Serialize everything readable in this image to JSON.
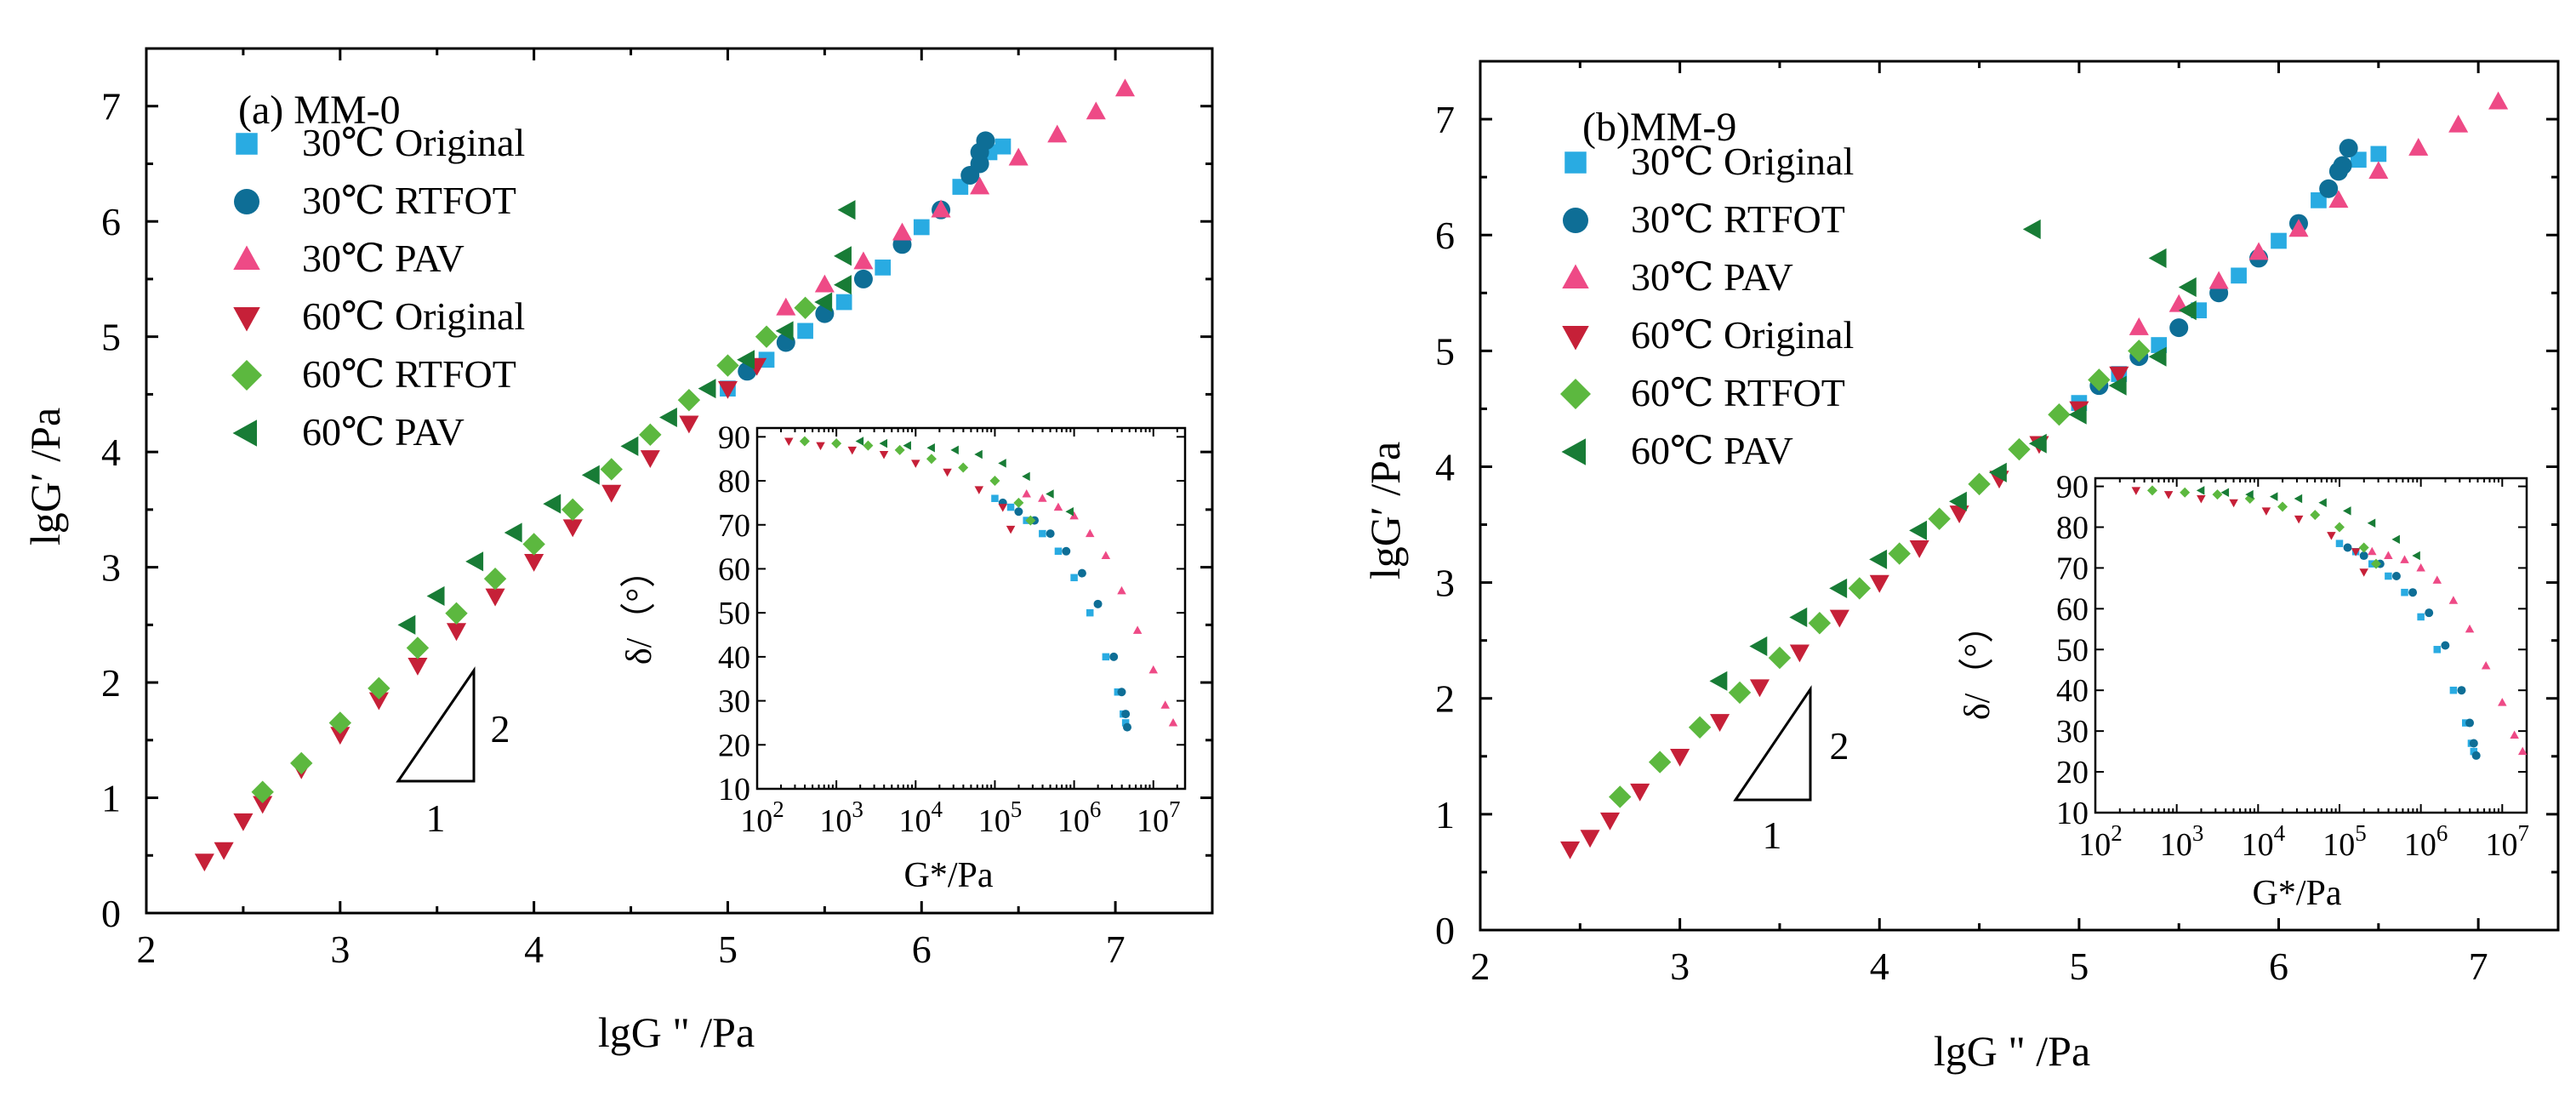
{
  "colors": {
    "c30_original": "#29abe2",
    "c30_rtfot": "#0e6e96",
    "c30_pav": "#ee4a86",
    "c60_original": "#c62038",
    "c60_rtfot": "#5cb83f",
    "c60_pav": "#187c36"
  },
  "chart_data": [
    {
      "type": "scatter",
      "panel": "a",
      "title": "(a) MM-0",
      "xlabel": "lgG \" /Pa",
      "ylabel": "lgG′ /Pa",
      "xlim": [
        2,
        7.5
      ],
      "ylim": [
        0,
        7.5
      ],
      "xticks": [
        2,
        3,
        4,
        5,
        6,
        7
      ],
      "yticks": [
        0,
        1,
        2,
        3,
        4,
        5,
        6,
        7
      ],
      "legend_position": "top-left",
      "slope_marker": {
        "run": "1",
        "rise": "2"
      },
      "series": [
        {
          "name": "30℃ Original",
          "marker": "square",
          "color_key": "c30_original",
          "x": [
            5.0,
            5.2,
            5.4,
            5.6,
            5.8,
            6.0,
            6.2,
            6.35,
            6.42
          ],
          "y": [
            4.55,
            4.8,
            5.05,
            5.3,
            5.6,
            5.95,
            6.3,
            6.6,
            6.65
          ]
        },
        {
          "name": "30℃ RTFOT",
          "marker": "circle",
          "color_key": "c30_rtfot",
          "x": [
            5.1,
            5.3,
            5.5,
            5.7,
            5.9,
            6.1,
            6.25,
            6.3,
            6.33,
            6.3
          ],
          "y": [
            4.7,
            4.95,
            5.2,
            5.5,
            5.8,
            6.1,
            6.4,
            6.6,
            6.7,
            6.5
          ]
        },
        {
          "name": "30℃ PAV",
          "marker": "triangle-up",
          "color_key": "c30_pav",
          "x": [
            5.3,
            5.5,
            5.7,
            5.9,
            6.1,
            6.3,
            6.5,
            6.7,
            6.9,
            7.05
          ],
          "y": [
            5.25,
            5.45,
            5.65,
            5.9,
            6.1,
            6.3,
            6.55,
            6.75,
            6.95,
            7.15
          ]
        },
        {
          "name": "60℃ Original",
          "marker": "triangle-down",
          "color_key": "c60_original",
          "x": [
            2.3,
            2.4,
            2.5,
            2.6,
            2.8,
            3.0,
            3.2,
            3.4,
            3.6,
            3.8,
            4.0,
            4.2,
            4.4,
            4.6,
            4.8,
            5.0,
            5.15
          ],
          "y": [
            0.45,
            0.55,
            0.8,
            0.95,
            1.25,
            1.55,
            1.85,
            2.15,
            2.45,
            2.75,
            3.05,
            3.35,
            3.65,
            3.95,
            4.25,
            4.55,
            4.75
          ]
        },
        {
          "name": "60℃ RTFOT",
          "marker": "diamond",
          "color_key": "c60_rtfot",
          "x": [
            2.6,
            2.8,
            3.0,
            3.2,
            3.4,
            3.6,
            3.8,
            4.0,
            4.2,
            4.4,
            4.6,
            4.8,
            5.0,
            5.2,
            5.4
          ],
          "y": [
            1.05,
            1.3,
            1.65,
            1.95,
            2.3,
            2.6,
            2.9,
            3.2,
            3.5,
            3.85,
            4.15,
            4.45,
            4.75,
            5.0,
            5.25
          ]
        },
        {
          "name": "60℃ PAV",
          "marker": "triangle-left",
          "color_key": "c60_pav",
          "x": [
            3.35,
            3.5,
            3.7,
            3.9,
            4.1,
            4.3,
            4.5,
            4.7,
            4.9,
            5.1,
            5.3,
            5.5,
            5.6,
            5.6,
            5.62
          ],
          "y": [
            2.5,
            2.75,
            3.05,
            3.3,
            3.55,
            3.8,
            4.05,
            4.3,
            4.55,
            4.8,
            5.05,
            5.3,
            5.45,
            5.7,
            6.1
          ]
        }
      ],
      "inset": {
        "type": "scatter",
        "xlabel": "G*/Pa",
        "ylabel": "δ/（°）",
        "xscale": "log",
        "xlim_log10": [
          2,
          7.4
        ],
        "ylim": [
          10,
          92
        ],
        "xtick_labels": [
          "10",
          "10",
          "10",
          "10",
          "10",
          "10"
        ],
        "xtick_exponents": [
          "2",
          "3",
          "4",
          "5",
          "6",
          "7"
        ],
        "ytick_labels": [
          "10",
          "20",
          "30",
          "40",
          "50",
          "60",
          "70",
          "80",
          "90"
        ],
        "series": [
          {
            "name": "30℃ Original",
            "marker": "square",
            "color_key": "c30_original",
            "log10_x": [
              5.0,
              5.2,
              5.4,
              5.6,
              5.8,
              6.0,
              6.2,
              6.4,
              6.55,
              6.62,
              6.65
            ],
            "y": [
              76,
              74,
              71,
              68,
              64,
              58,
              50,
              40,
              32,
              27,
              25
            ]
          },
          {
            "name": "30℃ RTFOT",
            "marker": "circle",
            "color_key": "c30_rtfot",
            "log10_x": [
              5.1,
              5.3,
              5.5,
              5.7,
              5.9,
              6.1,
              6.3,
              6.5,
              6.6,
              6.65,
              6.67
            ],
            "y": [
              75,
              73,
              71,
              68,
              64,
              59,
              52,
              40,
              32,
              27,
              24
            ]
          },
          {
            "name": "30℃ PAV",
            "marker": "triangle-up",
            "color_key": "c30_pav",
            "log10_x": [
              5.4,
              5.6,
              5.8,
              6.0,
              6.2,
              6.4,
              6.6,
              6.8,
              7.0,
              7.15,
              7.25
            ],
            "y": [
              77,
              76,
              74,
              72,
              68,
              63,
              55,
              46,
              37,
              29,
              25
            ]
          },
          {
            "name": "60℃ Original",
            "marker": "triangle-down",
            "color_key": "c60_original",
            "log10_x": [
              2.4,
              2.8,
              3.2,
              3.6,
              4.0,
              4.4,
              4.8,
              5.1,
              5.2
            ],
            "y": [
              89,
              88,
              87,
              86,
              84,
              82,
              78,
              74,
              69
            ]
          },
          {
            "name": "60℃ RTFOT",
            "marker": "diamond",
            "color_key": "c60_rtfot",
            "log10_x": [
              2.6,
              3.0,
              3.4,
              3.8,
              4.2,
              4.6,
              5.0,
              5.3,
              5.45
            ],
            "y": [
              89,
              88.5,
              88,
              87,
              85,
              83,
              80,
              75,
              71
            ]
          },
          {
            "name": "60℃ PAV",
            "marker": "triangle-left",
            "color_key": "c60_pav",
            "log10_x": [
              3.3,
              3.6,
              3.9,
              4.2,
              4.5,
              4.8,
              5.1,
              5.4,
              5.7,
              5.95
            ],
            "y": [
              89,
              88.5,
              88,
              87.5,
              87,
              86,
              84,
              81,
              77,
              73
            ]
          }
        ]
      }
    },
    {
      "type": "scatter",
      "panel": "b",
      "title": "(b)MM-9",
      "xlabel": "lgG \" /Pa",
      "ylabel": "lgG′ /Pa",
      "xlim": [
        2,
        7.4
      ],
      "ylim": [
        0,
        7.5
      ],
      "xticks": [
        2,
        3,
        4,
        5,
        6,
        7
      ],
      "yticks": [
        0,
        1,
        2,
        3,
        4,
        5,
        6,
        7
      ],
      "legend_position": "top-left",
      "slope_marker": {
        "run": "1",
        "rise": "2"
      },
      "series": [
        {
          "name": "30℃ Original",
          "marker": "square",
          "color_key": "c30_original",
          "x": [
            5.0,
            5.2,
            5.4,
            5.6,
            5.8,
            6.0,
            6.2,
            6.4,
            6.5
          ],
          "y": [
            4.55,
            4.8,
            5.05,
            5.35,
            5.65,
            5.95,
            6.3,
            6.65,
            6.7
          ]
        },
        {
          "name": "30℃ RTFOT",
          "marker": "circle",
          "color_key": "c30_rtfot",
          "x": [
            5.1,
            5.3,
            5.5,
            5.7,
            5.9,
            6.1,
            6.25,
            6.32,
            6.35,
            6.3
          ],
          "y": [
            4.7,
            4.95,
            5.2,
            5.5,
            5.8,
            6.1,
            6.4,
            6.6,
            6.75,
            6.55
          ]
        },
        {
          "name": "30℃ PAV",
          "marker": "triangle-up",
          "color_key": "c30_pav",
          "x": [
            5.3,
            5.5,
            5.7,
            5.9,
            6.1,
            6.3,
            6.5,
            6.7,
            6.9,
            7.1
          ],
          "y": [
            5.2,
            5.4,
            5.6,
            5.85,
            6.05,
            6.3,
            6.55,
            6.75,
            6.95,
            7.15
          ]
        },
        {
          "name": "60℃ Original",
          "marker": "triangle-down",
          "color_key": "c60_original",
          "x": [
            2.45,
            2.55,
            2.65,
            2.8,
            3.0,
            3.2,
            3.4,
            3.6,
            3.8,
            4.0,
            4.2,
            4.4,
            4.6,
            4.8,
            5.0,
            5.2
          ],
          "y": [
            0.7,
            0.8,
            0.95,
            1.2,
            1.5,
            1.8,
            2.1,
            2.4,
            2.7,
            3.0,
            3.3,
            3.6,
            3.9,
            4.2,
            4.5,
            4.8
          ]
        },
        {
          "name": "60℃ RTFOT",
          "marker": "diamond",
          "color_key": "c60_rtfot",
          "x": [
            2.7,
            2.9,
            3.1,
            3.3,
            3.5,
            3.7,
            3.9,
            4.1,
            4.3,
            4.5,
            4.7,
            4.9,
            5.1,
            5.3
          ],
          "y": [
            1.15,
            1.45,
            1.75,
            2.05,
            2.35,
            2.65,
            2.95,
            3.25,
            3.55,
            3.85,
            4.15,
            4.45,
            4.75,
            5.0
          ]
        },
        {
          "name": "60℃ PAV",
          "marker": "triangle-left",
          "color_key": "c60_pav",
          "x": [
            3.2,
            3.4,
            3.6,
            3.8,
            4.0,
            4.2,
            4.4,
            4.6,
            4.8,
            5.0,
            5.2,
            5.4,
            5.55,
            5.55,
            5.4,
            4.77
          ],
          "y": [
            2.15,
            2.45,
            2.7,
            2.95,
            3.2,
            3.45,
            3.7,
            3.95,
            4.2,
            4.45,
            4.7,
            4.95,
            5.35,
            5.55,
            5.8,
            6.05
          ]
        }
      ],
      "inset": {
        "type": "scatter",
        "xlabel": "G*/Pa",
        "ylabel": "δ/（°）",
        "xscale": "log",
        "xlim_log10": [
          2,
          7.3
        ],
        "ylim": [
          10,
          92
        ],
        "xtick_labels": [
          "10",
          "10",
          "10",
          "10",
          "10",
          "10"
        ],
        "xtick_exponents": [
          "2",
          "3",
          "4",
          "5",
          "6",
          "7"
        ],
        "ytick_labels": [
          "10",
          "20",
          "30",
          "40",
          "50",
          "60",
          "70",
          "80",
          "90"
        ],
        "series": [
          {
            "name": "30℃ Original",
            "marker": "square",
            "color_key": "c30_original",
            "log10_x": [
              5.0,
              5.2,
              5.4,
              5.6,
              5.8,
              6.0,
              6.2,
              6.4,
              6.55,
              6.62,
              6.65
            ],
            "y": [
              76,
              74,
              71,
              68,
              64,
              58,
              50,
              40,
              32,
              27,
              25
            ]
          },
          {
            "name": "30℃ RTFOT",
            "marker": "circle",
            "color_key": "c30_rtfot",
            "log10_x": [
              5.1,
              5.3,
              5.5,
              5.7,
              5.9,
              6.1,
              6.3,
              6.5,
              6.6,
              6.65,
              6.68
            ],
            "y": [
              75,
              73,
              71,
              68,
              64,
              59,
              51,
              40,
              32,
              27,
              24
            ]
          },
          {
            "name": "30℃ PAV",
            "marker": "triangle-up",
            "color_key": "c30_pav",
            "log10_x": [
              5.4,
              5.6,
              5.8,
              6.0,
              6.2,
              6.4,
              6.6,
              6.8,
              7.0,
              7.15,
              7.25
            ],
            "y": [
              74,
              73,
              72,
              70,
              67,
              62,
              55,
              46,
              37,
              29,
              25
            ]
          },
          {
            "name": "60℃ Original",
            "marker": "triangle-down",
            "color_key": "c60_original",
            "log10_x": [
              2.5,
              2.9,
              3.3,
              3.7,
              4.1,
              4.5,
              4.9,
              5.2,
              5.3
            ],
            "y": [
              89,
              88,
              87,
              86,
              84,
              82,
              78,
              74,
              69
            ]
          },
          {
            "name": "60℃ RTFOT",
            "marker": "diamond",
            "color_key": "c60_rtfot",
            "log10_x": [
              2.7,
              3.1,
              3.5,
              3.9,
              4.3,
              4.7,
              5.0,
              5.3,
              5.45
            ],
            "y": [
              89,
              88.5,
              88,
              87,
              85,
              83,
              80,
              75,
              71
            ]
          },
          {
            "name": "60℃ PAV",
            "marker": "triangle-left",
            "color_key": "c60_pav",
            "log10_x": [
              3.3,
              3.6,
              3.9,
              4.2,
              4.5,
              4.8,
              5.1,
              5.4,
              5.7,
              5.95
            ],
            "y": [
              89,
              88.5,
              88,
              87.5,
              87,
              86,
              84,
              81,
              77,
              73
            ]
          }
        ]
      }
    }
  ]
}
